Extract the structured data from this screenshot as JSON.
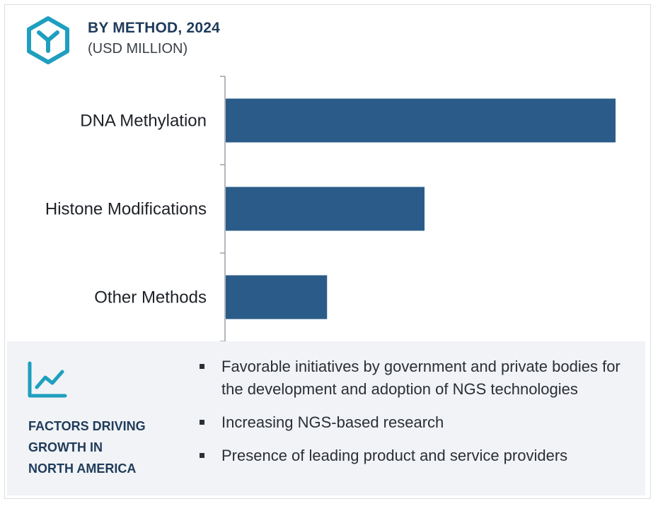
{
  "header": {
    "title": "BY METHOD, 2024",
    "subtitle": "(USD MILLION)",
    "icon": "hexagon-y-icon"
  },
  "colors": {
    "bar": "#2b5c89",
    "title": "#1f3b5a",
    "icon": "#1f9fbf",
    "panel": "#f1f3f6"
  },
  "chart_data": {
    "type": "bar",
    "orientation": "horizontal",
    "categories": [
      "DNA Methylation",
      "Histone Modifications",
      "Other Methods"
    ],
    "values": [
      100,
      51,
      26
    ],
    "xlim": [
      0,
      100
    ],
    "value_axis_labels": "none",
    "grid": false,
    "legend": "none"
  },
  "factors": {
    "icon": "line-chart-icon",
    "title_lines": [
      "FACTORS DRIVING",
      "GROWTH IN",
      "NORTH AMERICA"
    ],
    "bullets": [
      "Favorable initiatives by government and private bodies for the development and adoption of NGS technologies",
      "Increasing NGS-based research",
      "Presence of leading product and service providers"
    ]
  }
}
